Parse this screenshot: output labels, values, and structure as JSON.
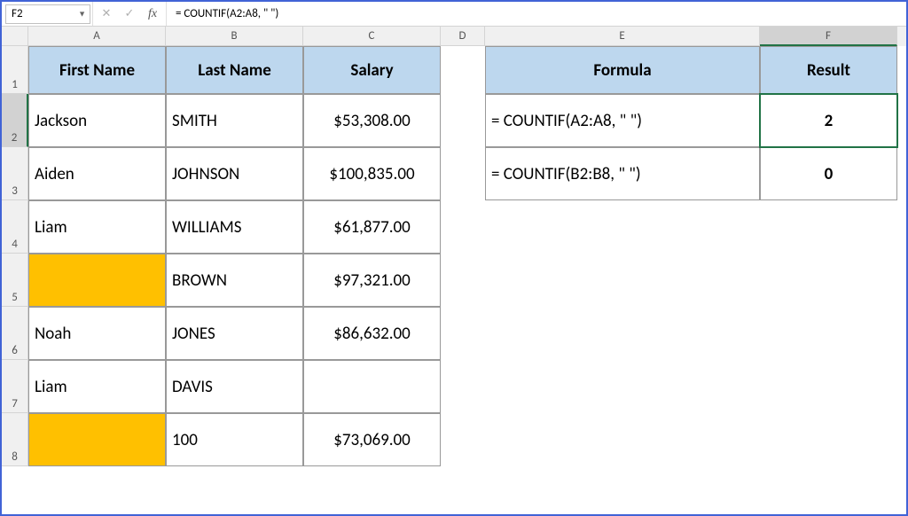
{
  "namebox": {
    "value": "F2"
  },
  "formula_bar": {
    "text": "= COUNTIF(A2:A8, \" \")"
  },
  "column_letters": [
    "A",
    "B",
    "C",
    "D",
    "E",
    "F"
  ],
  "row_numbers": [
    "1",
    "2",
    "3",
    "4",
    "5",
    "6",
    "7",
    "8"
  ],
  "active_column": "F",
  "active_row": "2",
  "table1": {
    "headers": {
      "first": "First Name",
      "last": "Last Name",
      "salary": "Salary"
    },
    "rows": [
      {
        "first": "Jackson",
        "last": "SMITH",
        "salary": "$53,308.00",
        "first_bg": "#ffffff"
      },
      {
        "first": "Aiden",
        "last": "JOHNSON",
        "salary": "$100,835.00",
        "first_bg": "#ffffff"
      },
      {
        "first": "Liam",
        "last": "WILLIAMS",
        "salary": "$61,877.00",
        "first_bg": "#ffffff"
      },
      {
        "first": "",
        "last": "BROWN",
        "salary": "$97,321.00",
        "first_bg": "#ffc000"
      },
      {
        "first": "Noah",
        "last": "JONES",
        "salary": "$86,632.00",
        "first_bg": "#ffffff"
      },
      {
        "first": "Liam",
        "last": "DAVIS",
        "salary": "",
        "first_bg": "#ffffff"
      },
      {
        "first": "",
        "last": "100",
        "salary": "$73,069.00",
        "first_bg": "#ffc000"
      }
    ]
  },
  "table2": {
    "headers": {
      "formula": "Formula",
      "result": "Result"
    },
    "rows": [
      {
        "formula": "= COUNTIF(A2:A8, \" \")",
        "result": "2"
      },
      {
        "formula": "= COUNTIF(B2:B8, \" \")",
        "result": "0"
      }
    ]
  },
  "colors": {
    "header_fill": "#bdd7ee",
    "highlight": "#ffc000",
    "selection_border": "#217346",
    "app_border": "#4163d6"
  }
}
